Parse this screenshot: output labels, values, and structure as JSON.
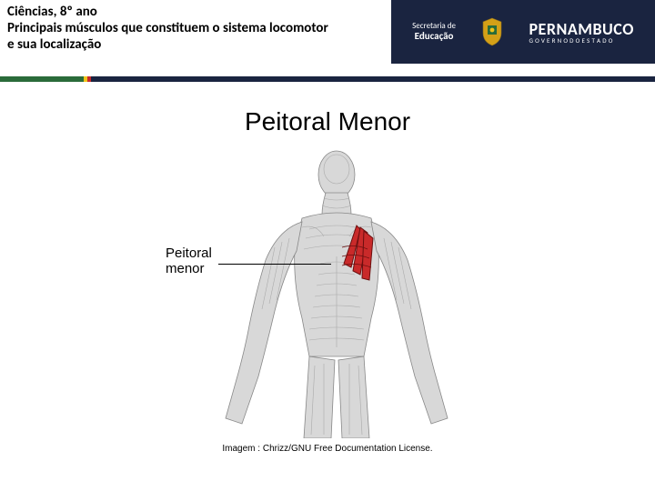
{
  "header": {
    "line1": "Ciências, 8º ano",
    "line2": "Principais músculos que constituem o sistema locomotor",
    "line3": "e sua localização",
    "secretaria_a": "Secretaria de",
    "secretaria_b": "Educação",
    "pn_main": "PERNAMBUCO",
    "pn_sub": "G O V E R N O   D O   E S T A D O",
    "accent_colors": [
      "#2a6b3a",
      "#f0c419",
      "#c92a2a",
      "#1a2440"
    ],
    "accent_widths": [
      92,
      4,
      4,
      620
    ]
  },
  "slide": {
    "title": "Peitoral Menor",
    "label_line1": "Peitoral",
    "label_line2": "menor",
    "credit": "Imagem : Chrizz/GNU Free Documentation License.",
    "muscle_highlight_color": "#c92a2a",
    "muscle_outline_color": "#6b0f0f",
    "body_fill": "#d8d8d8",
    "body_stroke": "#888888",
    "muscle_line_stroke": "#aaaaaa"
  }
}
